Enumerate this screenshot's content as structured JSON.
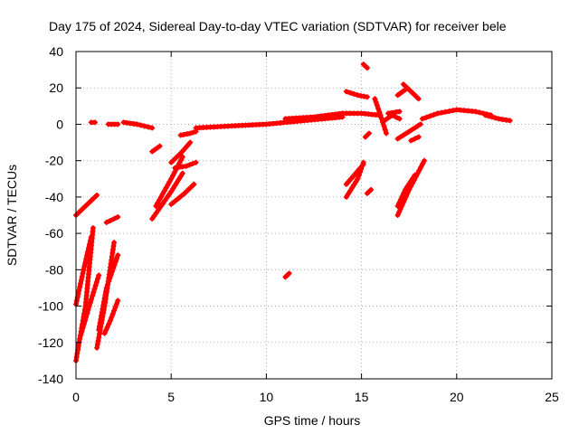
{
  "chart_data": {
    "type": "scatter",
    "title": "Day 175 of 2024, Sidereal Day-to-day VTEC variation (SDTVAR) for receiver bele",
    "xlabel": "GPS time / hours",
    "ylabel": "SDTVAR / TECUs",
    "xlim": [
      0,
      25
    ],
    "ylim": [
      -140,
      40
    ],
    "xticks": [
      0,
      5,
      10,
      15,
      20,
      25
    ],
    "xtick_labels": [
      "0",
      "5",
      "10",
      "15",
      "20",
      "25"
    ],
    "yticks": [
      -140,
      -120,
      -100,
      -80,
      -60,
      -40,
      -20,
      0,
      20,
      40
    ],
    "ytick_labels": [
      "-140",
      "-120",
      "-100",
      "-80",
      "-60",
      "-40",
      "-20",
      "0",
      "20",
      "40"
    ],
    "grid": true,
    "marker": "+",
    "color": "#ff0000",
    "arcs": [
      {
        "name": "arc-a",
        "x": [
          0.0,
          0.5,
          1.1
        ],
        "y": [
          -50,
          -45,
          -39
        ]
      },
      {
        "name": "arc-b",
        "x": [
          0.0,
          0.4,
          0.8
        ],
        "y": [
          -99,
          -80,
          -62
        ]
      },
      {
        "name": "arc-c",
        "x": [
          0.0,
          0.5,
          0.9
        ],
        "y": [
          -130,
          -100,
          -57
        ]
      },
      {
        "name": "arc-d",
        "x": [
          0.25,
          0.7,
          1.2
        ],
        "y": [
          -116,
          -100,
          -83
        ]
      },
      {
        "name": "arc-e",
        "x": [
          1.1,
          1.5,
          2.0
        ],
        "y": [
          -123,
          -100,
          -65
        ]
      },
      {
        "name": "arc-f",
        "x": [
          1.2,
          1.6,
          2.2
        ],
        "y": [
          -113,
          -90,
          -72
        ]
      },
      {
        "name": "arc-g",
        "x": [
          1.5,
          1.8,
          2.2
        ],
        "y": [
          -115,
          -108,
          -97
        ]
      },
      {
        "name": "arc-h",
        "x": [
          1.6,
          2.2
        ],
        "y": [
          -54,
          -51
        ]
      },
      {
        "name": "arc-i",
        "x": [
          0.8,
          1.0
        ],
        "y": [
          1,
          1
        ]
      },
      {
        "name": "arc-j",
        "x": [
          1.7,
          2.2
        ],
        "y": [
          0,
          0
        ]
      },
      {
        "name": "arc-k",
        "x": [
          2.5,
          3.2,
          4.0
        ],
        "y": [
          1,
          0,
          -2
        ]
      },
      {
        "name": "arc-l",
        "x": [
          4.0,
          4.4
        ],
        "y": [
          -15,
          -12
        ]
      },
      {
        "name": "arc-m",
        "x": [
          4.0,
          5.0,
          5.6
        ],
        "y": [
          -52,
          -37,
          -27
        ]
      },
      {
        "name": "arc-n",
        "x": [
          4.2,
          5.0,
          5.6
        ],
        "y": [
          -45,
          -30,
          -18
        ]
      },
      {
        "name": "arc-o",
        "x": [
          5.0,
          5.5,
          6.0
        ],
        "y": [
          -21,
          -16,
          -10
        ]
      },
      {
        "name": "arc-p",
        "x": [
          5.2,
          5.8,
          6.3
        ],
        "y": [
          -24,
          -23,
          -21
        ]
      },
      {
        "name": "arc-q",
        "x": [
          5.0,
          5.7,
          6.2
        ],
        "y": [
          -44,
          -38,
          -33
        ]
      },
      {
        "name": "arc-r",
        "x": [
          5.5,
          6.0,
          6.3
        ],
        "y": [
          -6,
          -5,
          -4
        ]
      },
      {
        "name": "arc-s",
        "x": [
          6.3,
          8.0,
          10.0,
          12.0,
          14.0
        ],
        "y": [
          -2,
          -1,
          0,
          2,
          4
        ]
      },
      {
        "name": "arc-t",
        "x": [
          11.0,
          12.5,
          14.0
        ],
        "y": [
          3,
          4,
          6
        ]
      },
      {
        "name": "arc-u",
        "x": [
          11.0,
          11.2
        ],
        "y": [
          -84,
          -82
        ]
      },
      {
        "name": "arc-v",
        "x": [
          14.2,
          14.8,
          15.3
        ],
        "y": [
          18,
          16,
          15
        ]
      },
      {
        "name": "arc-w",
        "x": [
          14.0,
          15.0,
          15.9
        ],
        "y": [
          6,
          6,
          5
        ]
      },
      {
        "name": "arc-x",
        "x": [
          15.1,
          15.3
        ],
        "y": [
          33,
          31
        ]
      },
      {
        "name": "arc-y",
        "x": [
          14.2,
          14.8,
          15.1
        ],
        "y": [
          -40,
          -30,
          -21
        ]
      },
      {
        "name": "arc-z",
        "x": [
          14.2,
          14.7,
          15.1
        ],
        "y": [
          -33,
          -27,
          -22
        ]
      },
      {
        "name": "arc-aa",
        "x": [
          15.3,
          15.5
        ],
        "y": [
          -38,
          -36
        ]
      },
      {
        "name": "arc-ab",
        "x": [
          15.2,
          15.4
        ],
        "y": [
          -7,
          -5
        ]
      },
      {
        "name": "arc-ac",
        "x": [
          15.7,
          16.0,
          16.3
        ],
        "y": [
          14,
          5,
          -5
        ]
      },
      {
        "name": "arc-ad",
        "x": [
          16.2,
          16.6,
          17.0
        ],
        "y": [
          2,
          5,
          3
        ]
      },
      {
        "name": "arc-ae",
        "x": [
          16.4,
          17.0
        ],
        "y": [
          6,
          7
        ]
      },
      {
        "name": "arc-af",
        "x": [
          16.9,
          17.3
        ],
        "y": [
          16,
          19
        ]
      },
      {
        "name": "arc-ag",
        "x": [
          17.2,
          17.6,
          18.0
        ],
        "y": [
          22,
          18,
          14
        ]
      },
      {
        "name": "arc-ah",
        "x": [
          16.9,
          17.5,
          18.1
        ],
        "y": [
          -8,
          -4,
          0
        ]
      },
      {
        "name": "arc-ai",
        "x": [
          17.6,
          18.0
        ],
        "y": [
          -9,
          -7
        ]
      },
      {
        "name": "arc-aj",
        "x": [
          16.9,
          17.5,
          18.3
        ],
        "y": [
          -50,
          -36,
          -20
        ]
      },
      {
        "name": "arc-ak",
        "x": [
          16.9,
          17.3,
          17.8
        ],
        "y": [
          -45,
          -36,
          -28
        ]
      },
      {
        "name": "arc-al",
        "x": [
          18.2,
          19.0,
          20.0,
          21.0,
          21.8
        ],
        "y": [
          3,
          6,
          8,
          7,
          5
        ]
      },
      {
        "name": "arc-am",
        "x": [
          21.5,
          22.2,
          22.8
        ],
        "y": [
          5,
          3,
          2
        ]
      }
    ]
  }
}
